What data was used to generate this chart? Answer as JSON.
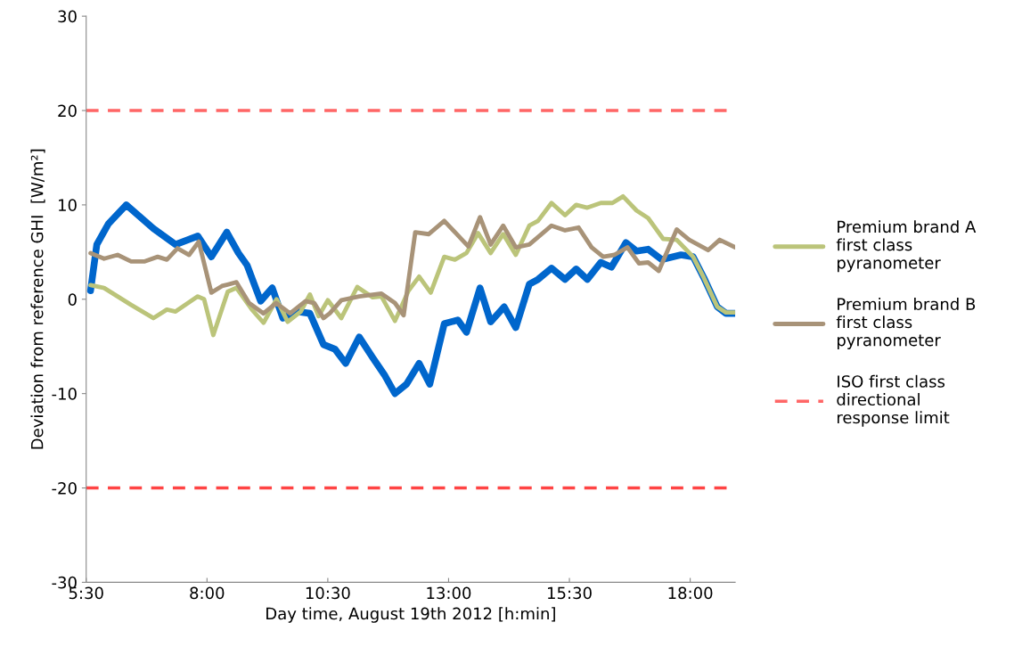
{
  "chart_data": {
    "type": "line",
    "xlabel": "Day time, August 19th 2012 [h:min]",
    "ylabel": "Deviation from reference GHI  [W/m²]",
    "xlim": [
      5.5,
      18.93
    ],
    "xticks": [
      {
        "value": 5.5,
        "label": "5:30"
      },
      {
        "value": 8,
        "label": "8:00"
      },
      {
        "value": 10.5,
        "label": "10:30"
      },
      {
        "value": 13,
        "label": "13:00"
      },
      {
        "value": 15.5,
        "label": "15:30"
      },
      {
        "value": 18,
        "label": "18:00"
      }
    ],
    "ylim": [
      -30,
      30
    ],
    "yticks": [
      -30,
      -20,
      -10,
      0,
      10,
      20,
      30
    ],
    "grid": false,
    "legend": "right",
    "marker": "none",
    "line_style": "solid",
    "series": [
      {
        "color": "#0066cc",
        "x": [
          5.59,
          5.72,
          5.96,
          6.33,
          6.89,
          7.35,
          7.81,
          8.09,
          8.41,
          8.65,
          8.83,
          9.11,
          9.35,
          9.57,
          9.85,
          10.13,
          10.41,
          10.65,
          10.87,
          11.15,
          11.43,
          11.67,
          11.89,
          12.13,
          12.39,
          12.61,
          12.91,
          13.19,
          13.37,
          13.65,
          13.87,
          14.15,
          14.39,
          14.67,
          14.85,
          15.13,
          15.41,
          15.64,
          15.87,
          16.15,
          16.37,
          16.67,
          16.89,
          17.13,
          17.41,
          17.81,
          18.06,
          18.28,
          18.56,
          18.74,
          18.93
        ],
        "values": [
          0.9,
          5.8,
          8,
          10,
          7.5,
          5.8,
          6.7,
          4.5,
          7.1,
          4.9,
          3.6,
          -0.2,
          1.2,
          -2,
          -1.3,
          -1.5,
          -4.8,
          -5.3,
          -6.8,
          -4,
          -6.2,
          -8,
          -10,
          -9,
          -6.8,
          -9,
          -2.6,
          -2.2,
          -3.5,
          1.2,
          -2.4,
          -0.8,
          -3,
          1.6,
          2.1,
          3.3,
          2.1,
          3.2,
          2.1,
          3.9,
          3.4,
          6,
          5.1,
          5.3,
          4.2,
          4.7,
          4.5,
          2.3,
          -0.8,
          -1.5,
          -1.5
        ]
      },
      {
        "name": "Premium brand A first class pyranometer",
        "color": "#bbc47a",
        "x": [
          5.59,
          5.87,
          6.43,
          6.89,
          7.17,
          7.35,
          7.81,
          7.94,
          8.13,
          8.43,
          8.61,
          8.93,
          9.17,
          9.44,
          9.67,
          9.94,
          10.13,
          10.31,
          10.5,
          10.78,
          11.11,
          11.43,
          11.61,
          11.89,
          12.17,
          12.39,
          12.63,
          12.91,
          13.13,
          13.37,
          13.61,
          13.87,
          14.13,
          14.39,
          14.67,
          14.85,
          15.13,
          15.41,
          15.64,
          15.87,
          16.15,
          16.39,
          16.61,
          16.89,
          17.13,
          17.44,
          17.72,
          18.06,
          18.28,
          18.56,
          18.74,
          18.93
        ],
        "values": [
          1.5,
          1.2,
          -0.6,
          -2,
          -1.1,
          -1.3,
          0.3,
          0,
          -3.8,
          0.8,
          1.2,
          -1.1,
          -2.5,
          0,
          -2.4,
          -1.3,
          0.5,
          -1.8,
          -0.1,
          -2,
          1.3,
          0.2,
          0.3,
          -2.3,
          0.9,
          2.4,
          0.7,
          4.5,
          4.2,
          4.9,
          7,
          4.9,
          6.9,
          4.7,
          7.8,
          8.3,
          10.2,
          8.9,
          10,
          9.7,
          10.2,
          10.2,
          10.9,
          9.4,
          8.6,
          6.4,
          6.3,
          4.5,
          2.3,
          -0.8,
          -1.4,
          -1.4
        ]
      },
      {
        "name": "Premium brand B first class pyranometer",
        "color": "#a89378",
        "x": [
          5.59,
          5.87,
          6.15,
          6.43,
          6.7,
          6.98,
          7.17,
          7.39,
          7.63,
          7.83,
          8.09,
          8.31,
          8.61,
          8.87,
          9.17,
          9.43,
          9.72,
          10.04,
          10.22,
          10.41,
          10.54,
          10.78,
          11.15,
          11.61,
          11.89,
          12.07,
          12.31,
          12.59,
          12.91,
          13.28,
          13.41,
          13.65,
          13.87,
          14.13,
          14.39,
          14.67,
          15.13,
          15.41,
          15.69,
          15.96,
          16.2,
          16.43,
          16.7,
          16.94,
          17.13,
          17.35,
          17.72,
          17.98,
          18.37,
          18.61,
          18.93
        ],
        "values": [
          4.9,
          4.3,
          4.7,
          4,
          4,
          4.5,
          4.2,
          5.4,
          4.7,
          6.1,
          0.7,
          1.4,
          1.8,
          -0.4,
          -1.5,
          -0.4,
          -1.5,
          -0.2,
          -0.4,
          -2,
          -1.5,
          -0.1,
          0.3,
          0.6,
          -0.4,
          -1.7,
          7.1,
          6.9,
          8.3,
          6.3,
          5.6,
          8.7,
          5.8,
          7.8,
          5.5,
          5.8,
          7.8,
          7.3,
          7.6,
          5.5,
          4.5,
          4.7,
          5.5,
          3.8,
          3.9,
          3,
          7.4,
          6.3,
          5.2,
          6.3,
          5.5
        ]
      }
    ],
    "ref_lines": [
      {
        "axis": "y",
        "value": 20,
        "label": "ISO first class directional response limit",
        "color": "#ff6666",
        "line_style": "dashed"
      },
      {
        "axis": "y",
        "value": -20,
        "color": "#ff4444",
        "line_style": "dashed"
      }
    ]
  }
}
